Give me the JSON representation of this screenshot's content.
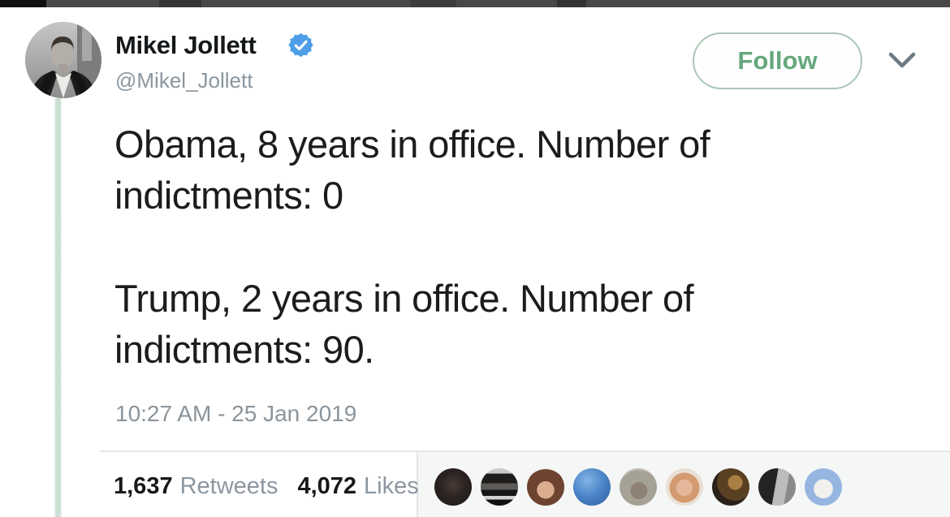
{
  "tweet": {
    "author": {
      "name": "Mikel Jollett",
      "handle": "@Mikel_Jollett",
      "verified": true
    },
    "follow_button": {
      "label": "Follow"
    },
    "paragraphs": [
      [
        "Obama, 8 years in office. Number of",
        "indictments: 0"
      ],
      [
        "Trump, 2 years in office. Number of",
        "indictments: 90."
      ]
    ],
    "full_text": "Obama, 8 years in office. Number of indictments: 0\n\nTrump, 2 years in office. Number of indictments: 90.",
    "timestamp": "10:27 AM - 25 Jan 2019",
    "stats": {
      "retweets_count": "1,637",
      "retweets_label": "Retweets",
      "likes_count": "4,072",
      "likes_label": "Likes"
    }
  },
  "engagement": {
    "avatars": [
      "radial-gradient(circle at 50% 45%, #4a3a33 0%, #2a2321 45%, #1d1918 100%)",
      "linear-gradient(180deg, #c9c9c9 0% 14%, #1d1d1d 14% 40%, #5d5a57 40% 58%, #161616 58% 74%, #d2d2d2 74% 84%, #101010 84% 100%)",
      "radial-gradient(circle at 50% 58%, #dcae8f 0% 30%, #6e4430 31% 72%, #ece4da 73% 100%)",
      "radial-gradient(circle at 38% 32%, #82b4e6 0%, #4a83c6 48%, #2f5f9f 100%)",
      "radial-gradient(circle at 52% 60%, #8d8274 0% 28%, #a5a295 29% 68%, #bab8af 69% 100%)",
      "radial-gradient(circle at 50% 52%, #e5b89b 0% 30%, #d49a70 31% 55%, #eadfd3 56% 100%)",
      "radial-gradient(circle at 62% 38%, #a97f44 0% 22%, #5a4022 23% 55%, #2a211a 56% 100%)",
      "linear-gradient(100deg, #242424 0% 45%, #bcbcbc 46% 72%, #8a8a8a 73% 100%)",
      "radial-gradient(circle at 50% 55%, #f2f0ec 0% 34%, #96b6e1 35% 100%)"
    ]
  },
  "icons": {
    "verified_badge": "verified-badge",
    "chevron": "chevron-down"
  },
  "colors": {
    "accent_green": "#65a87d",
    "follow_border": "#aac6b4",
    "thread_line": "#c9dfd1",
    "verified_blue": "#4f9fe8",
    "text_primary": "#16181a",
    "text_secondary": "#8b96a0",
    "divider": "#e5e7e7",
    "top_bar": "#484848"
  }
}
